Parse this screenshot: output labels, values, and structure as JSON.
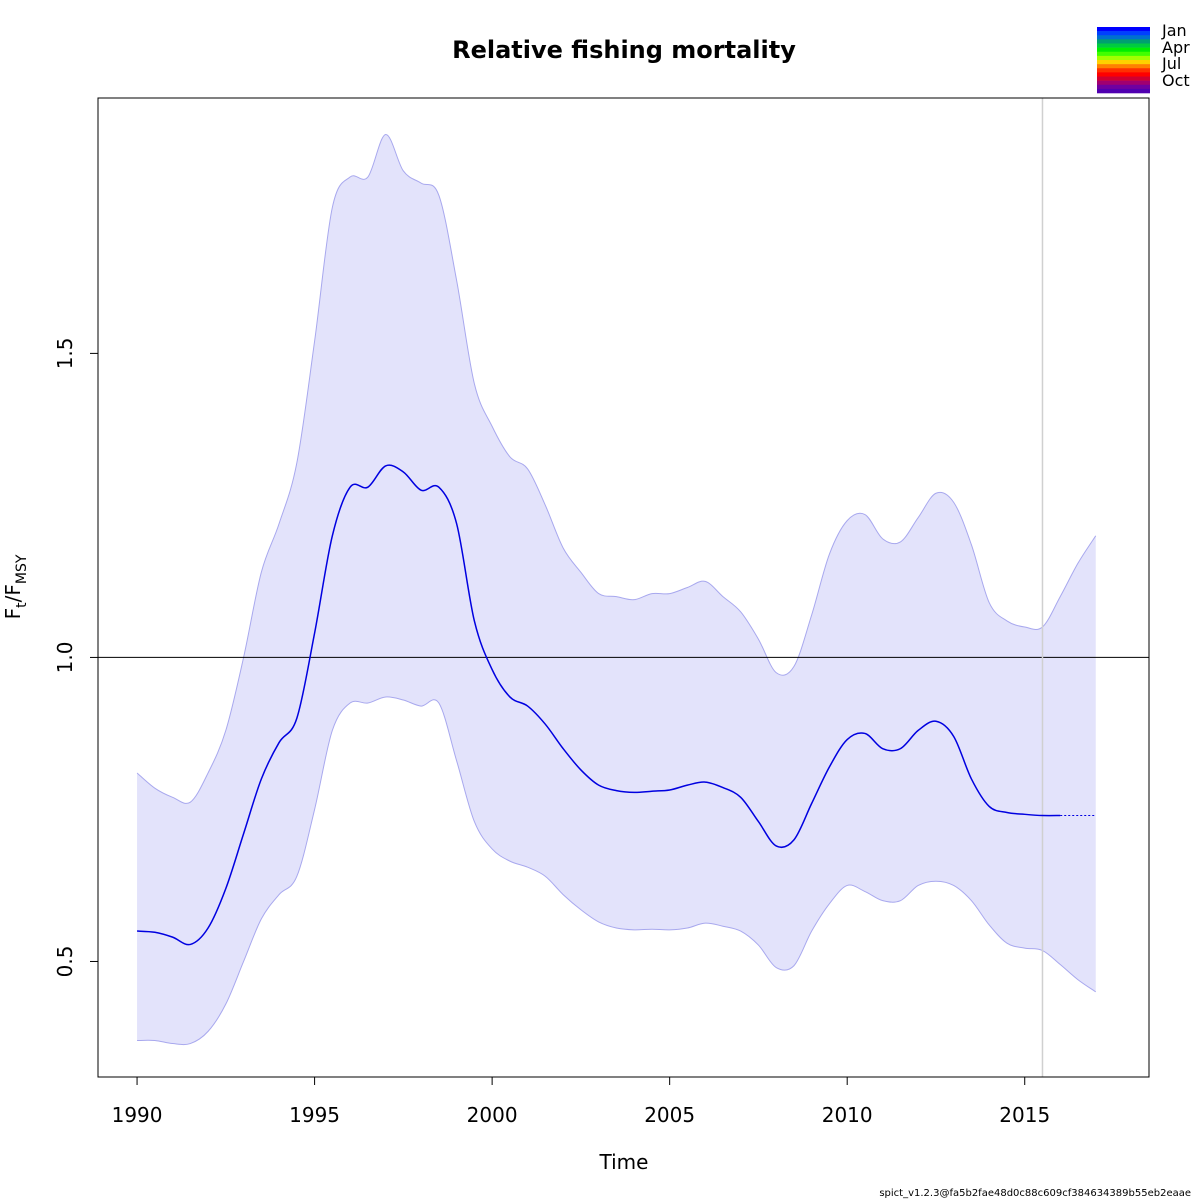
{
  "chart_data": {
    "type": "line",
    "title": "Relative fishing mortality",
    "xlabel": "Time",
    "ylabel": {
      "main": "F",
      "sub1": "t",
      "slash": "/F",
      "sub2": "MSY"
    },
    "xlim": [
      1988.9,
      2018.5
    ],
    "ylim": [
      0.31,
      1.92
    ],
    "xticks": [
      1990,
      1995,
      2000,
      2005,
      2010,
      2015
    ],
    "xtick_labels": [
      "1990",
      "1995",
      "2000",
      "2005",
      "2010",
      "2015"
    ],
    "yticks": [
      0.5,
      1.0,
      1.5
    ],
    "ytick_labels": [
      "0.5",
      "1.0",
      "1.5"
    ],
    "reference_line_y": 1.0,
    "vertical_line_x": 2015.5,
    "grid": false,
    "colors": {
      "estimate": "#0000e0",
      "band_fill": "#e3e3fb",
      "band_edge": "#a8a8ee",
      "reference": "#000000",
      "vertical": "#d0d0d0"
    },
    "series": [
      {
        "role": "estimate",
        "x": [
          1990,
          1990.5,
          1991,
          1991.5,
          1992,
          1992.5,
          1993,
          1993.5,
          1994,
          1994.5,
          1995,
          1995.5,
          1996,
          1996.5,
          1997,
          1997.5,
          1998,
          1998.5,
          1999,
          1999.5,
          2000,
          2000.5,
          2001,
          2001.5,
          2002,
          2002.5,
          2003,
          2003.5,
          2004,
          2004.5,
          2005,
          2005.5,
          2006,
          2006.5,
          2007,
          2007.5,
          2008,
          2008.5,
          2009,
          2009.5,
          2010,
          2010.5,
          2011,
          2011.5,
          2012,
          2012.5,
          2013,
          2013.5,
          2014,
          2014.5,
          2015,
          2015.5,
          2016
        ],
        "y": [
          0.55,
          0.548,
          0.54,
          0.528,
          0.555,
          0.62,
          0.71,
          0.8,
          0.86,
          0.9,
          1.04,
          1.2,
          1.28,
          1.28,
          1.315,
          1.305,
          1.275,
          1.28,
          1.22,
          1.06,
          0.98,
          0.935,
          0.92,
          0.89,
          0.85,
          0.815,
          0.79,
          0.781,
          0.778,
          0.78,
          0.782,
          0.79,
          0.795,
          0.786,
          0.77,
          0.73,
          0.69,
          0.7,
          0.76,
          0.82,
          0.865,
          0.875,
          0.85,
          0.85,
          0.88,
          0.895,
          0.87,
          0.8,
          0.755,
          0.745,
          0.742,
          0.74,
          0.74
        ]
      },
      {
        "role": "forecast",
        "x": [
          2016,
          2017
        ],
        "y": [
          0.74,
          0.74
        ]
      },
      {
        "role": "upper_ci",
        "x": [
          1990,
          1990.5,
          1991,
          1991.5,
          1992,
          1992.5,
          1993,
          1993.5,
          1994,
          1994.5,
          1995,
          1995.5,
          1996,
          1996.5,
          1997,
          1997.5,
          1998,
          1998.5,
          1999,
          1999.5,
          2000,
          2000.5,
          2001,
          2001.5,
          2002,
          2002.5,
          2003,
          2003.5,
          2004,
          2004.5,
          2005,
          2005.5,
          2006,
          2006.5,
          2007,
          2007.5,
          2008,
          2008.5,
          2009,
          2009.5,
          2010,
          2010.5,
          2011,
          2011.5,
          2012,
          2012.5,
          2013,
          2013.5,
          2014,
          2014.5,
          2015,
          2015.5,
          2016,
          2016.5,
          2017
        ],
        "y": [
          0.81,
          0.785,
          0.77,
          0.762,
          0.81,
          0.88,
          1.0,
          1.14,
          1.22,
          1.32,
          1.52,
          1.74,
          1.79,
          1.79,
          1.86,
          1.8,
          1.78,
          1.76,
          1.62,
          1.45,
          1.38,
          1.33,
          1.31,
          1.25,
          1.18,
          1.14,
          1.105,
          1.1,
          1.095,
          1.105,
          1.105,
          1.115,
          1.125,
          1.1,
          1.075,
          1.03,
          0.975,
          0.985,
          1.07,
          1.17,
          1.225,
          1.235,
          1.195,
          1.19,
          1.23,
          1.27,
          1.255,
          1.185,
          1.09,
          1.06,
          1.05,
          1.05,
          1.1,
          1.155,
          1.2
        ]
      },
      {
        "role": "lower_ci",
        "x": [
          1990,
          1990.5,
          1991,
          1991.5,
          1992,
          1992.5,
          1993,
          1993.5,
          1994,
          1994.5,
          1995,
          1995.5,
          1996,
          1996.5,
          1997,
          1997.5,
          1998,
          1998.5,
          1999,
          1999.5,
          2000,
          2000.5,
          2001,
          2001.5,
          2002,
          2002.5,
          2003,
          2003.5,
          2004,
          2004.5,
          2005,
          2005.5,
          2006,
          2006.5,
          2007,
          2007.5,
          2008,
          2008.5,
          2009,
          2009.5,
          2010,
          2010.5,
          2011,
          2011.5,
          2012,
          2012.5,
          2013,
          2013.5,
          2014,
          2014.5,
          2015,
          2015.5,
          2016,
          2016.5,
          2017
        ],
        "y": [
          0.37,
          0.37,
          0.365,
          0.365,
          0.385,
          0.43,
          0.5,
          0.57,
          0.61,
          0.64,
          0.75,
          0.88,
          0.925,
          0.925,
          0.935,
          0.93,
          0.92,
          0.925,
          0.83,
          0.73,
          0.685,
          0.665,
          0.655,
          0.64,
          0.61,
          0.585,
          0.565,
          0.555,
          0.552,
          0.553,
          0.552,
          0.555,
          0.563,
          0.558,
          0.55,
          0.527,
          0.49,
          0.493,
          0.55,
          0.595,
          0.625,
          0.615,
          0.6,
          0.6,
          0.625,
          0.632,
          0.625,
          0.6,
          0.56,
          0.53,
          0.522,
          0.518,
          0.495,
          0.47,
          0.45
        ]
      }
    ],
    "legend": {
      "placement": "top-right",
      "labels": [
        "Jan",
        "Apr",
        "Jul",
        "Oct"
      ],
      "colors": [
        "#0000ff",
        "#0040ff",
        "#0070d0",
        "#00a070",
        "#00cc40",
        "#00ee00",
        "#40ff00",
        "#a0ff00",
        "#ffd000",
        "#ff8000",
        "#ff3000",
        "#ff0000",
        "#d00030",
        "#a00070",
        "#7000a0",
        "#5000b0"
      ]
    },
    "footer": "spict_v1.2.3@fa5b2fae48d0c88c609cf384634389b55eb2eaae"
  }
}
